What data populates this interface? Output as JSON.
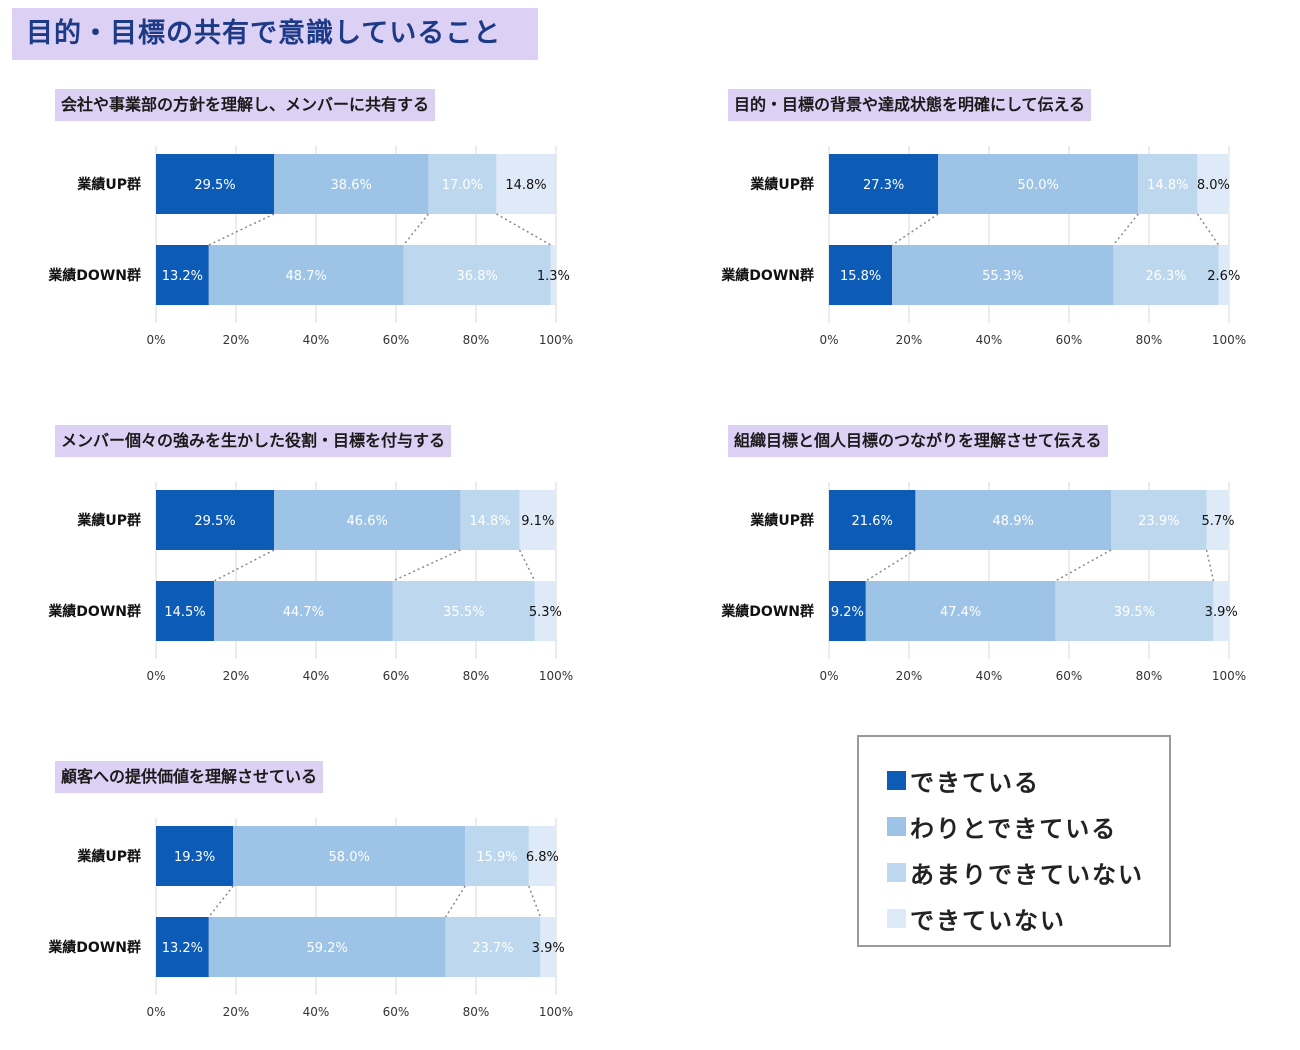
{
  "page_title": "目的・目標の共有で意識していること",
  "colors": [
    "#0c5bb6",
    "#9dc3e6",
    "#bcd7ee",
    "#deeaf7"
  ],
  "legend": [
    "できている",
    "わりとできている",
    "あまりできていない",
    "できていない"
  ],
  "chart_data": [
    {
      "type": "bar",
      "stacked": true,
      "orientation": "horizontal",
      "title": "会社や事業部の方針を理解し、メンバーに共有する",
      "categories": [
        "業績UP群",
        "業績DOWN群"
      ],
      "series": [
        {
          "name": "できている",
          "values": [
            29.5,
            13.2
          ],
          "labels": [
            "29.5%",
            "13.2%"
          ]
        },
        {
          "name": "わりとできている",
          "values": [
            38.6,
            48.7
          ],
          "labels": [
            "38.6%",
            "48.7%"
          ]
        },
        {
          "name": "あまりできていない",
          "values": [
            17.0,
            36.8
          ],
          "labels": [
            "17.0%",
            "36.8%"
          ]
        },
        {
          "name": "できていない",
          "values": [
            14.8,
            1.3
          ],
          "labels": [
            "14.8%",
            "1.3%"
          ]
        }
      ],
      "xlim": [
        0,
        100
      ],
      "xticks": [
        "0%",
        "20%",
        "40%",
        "60%",
        "80%",
        "100%"
      ]
    },
    {
      "type": "bar",
      "stacked": true,
      "orientation": "horizontal",
      "title": "目的・目標の背景や達成状態を明確にして伝える",
      "categories": [
        "業績UP群",
        "業績DOWN群"
      ],
      "series": [
        {
          "name": "できている",
          "values": [
            27.3,
            15.8
          ],
          "labels": [
            "27.3%",
            "15.8%"
          ]
        },
        {
          "name": "わりとできている",
          "values": [
            50.0,
            55.3
          ],
          "labels": [
            "50.0%",
            "55.3%"
          ]
        },
        {
          "name": "あまりできていない",
          "values": [
            14.8,
            26.3
          ],
          "labels": [
            "14.8%",
            "26.3%"
          ]
        },
        {
          "name": "できていない",
          "values": [
            8.0,
            2.6
          ],
          "labels": [
            "8.0%",
            "2.6%"
          ]
        }
      ],
      "xlim": [
        0,
        100
      ],
      "xticks": [
        "0%",
        "20%",
        "40%",
        "60%",
        "80%",
        "100%"
      ]
    },
    {
      "type": "bar",
      "stacked": true,
      "orientation": "horizontal",
      "title": "メンバー個々の強みを生かした役割・目標を付与する",
      "categories": [
        "業績UP群",
        "業績DOWN群"
      ],
      "series": [
        {
          "name": "できている",
          "values": [
            29.5,
            14.5
          ],
          "labels": [
            "29.5%",
            "14.5%"
          ]
        },
        {
          "name": "わりとできている",
          "values": [
            46.6,
            44.7
          ],
          "labels": [
            "46.6%",
            "44.7%"
          ]
        },
        {
          "name": "あまりできていない",
          "values": [
            14.8,
            35.5
          ],
          "labels": [
            "14.8%",
            "35.5%"
          ]
        },
        {
          "name": "できていない",
          "values": [
            9.1,
            5.3
          ],
          "labels": [
            "9.1%",
            "5.3%"
          ]
        }
      ],
      "xlim": [
        0,
        100
      ],
      "xticks": [
        "0%",
        "20%",
        "40%",
        "60%",
        "80%",
        "100%"
      ]
    },
    {
      "type": "bar",
      "stacked": true,
      "orientation": "horizontal",
      "title": "組織目標と個人目標のつながりを理解させて伝える",
      "categories": [
        "業績UP群",
        "業績DOWN群"
      ],
      "series": [
        {
          "name": "できている",
          "values": [
            21.6,
            9.2
          ],
          "labels": [
            "21.6%",
            "9.2%"
          ]
        },
        {
          "name": "わりとできている",
          "values": [
            48.9,
            47.4
          ],
          "labels": [
            "48.9%",
            "47.4%"
          ]
        },
        {
          "name": "あまりできていない",
          "values": [
            23.9,
            39.5
          ],
          "labels": [
            "23.9%",
            "39.5%"
          ]
        },
        {
          "name": "できていない",
          "values": [
            5.7,
            3.9
          ],
          "labels": [
            "5.7%",
            "3.9%"
          ]
        }
      ],
      "xlim": [
        0,
        100
      ],
      "xticks": [
        "0%",
        "20%",
        "40%",
        "60%",
        "80%",
        "100%"
      ]
    },
    {
      "type": "bar",
      "stacked": true,
      "orientation": "horizontal",
      "title": "顧客への提供価値を理解させている",
      "categories": [
        "業績UP群",
        "業績DOWN群"
      ],
      "series": [
        {
          "name": "できている",
          "values": [
            19.3,
            13.2
          ],
          "labels": [
            "19.3%",
            "13.2%"
          ]
        },
        {
          "name": "わりとできている",
          "values": [
            58.0,
            59.2
          ],
          "labels": [
            "58.0%",
            "59.2%"
          ]
        },
        {
          "name": "あまりできていない",
          "values": [
            15.9,
            23.7
          ],
          "labels": [
            "15.9%",
            "23.7%"
          ]
        },
        {
          "name": "できていない",
          "values": [
            6.8,
            3.9
          ],
          "labels": [
            "6.8%",
            "3.9%"
          ]
        }
      ],
      "xlim": [
        0,
        100
      ],
      "xticks": [
        "0%",
        "20%",
        "40%",
        "60%",
        "80%",
        "100%"
      ]
    }
  ]
}
